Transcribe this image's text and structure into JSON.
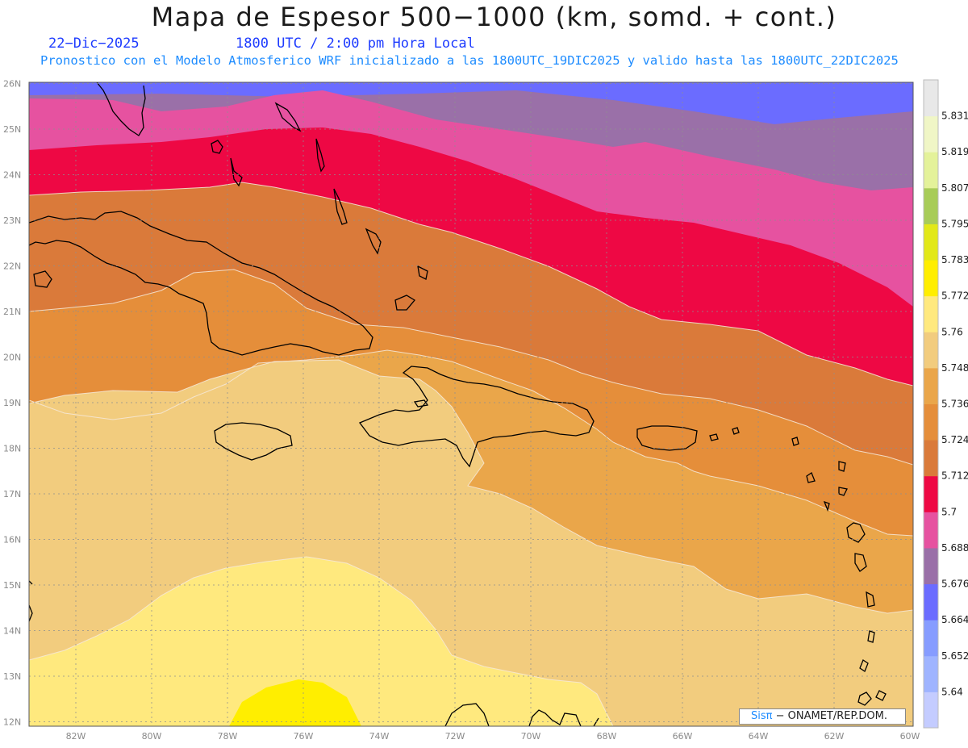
{
  "title": "Mapa de Espesor 500−1000 (km, somd. + cont.)",
  "date": "22−Dic−2025",
  "time": "1800 UTC / 2:00 pm Hora Local",
  "subtitle": "Pronostico con el Modelo Atmosferico WRF inicializado a las 1800UTC_19DIC2025 y valido hasta las  1800UTC_22DIC2025",
  "credit": {
    "brand": "Sisπ",
    "text": " − ONAMET/REP.DOM."
  },
  "lat_labels": [
    "26N",
    "25N",
    "24N",
    "23N",
    "22N",
    "21N",
    "20N",
    "19N",
    "18N",
    "17N",
    "16N",
    "15N",
    "14N",
    "13N",
    "12N"
  ],
  "lon_labels": [
    "82W",
    "80W",
    "78W",
    "76W",
    "74W",
    "72W",
    "70W",
    "68W",
    "66W",
    "64W",
    "62W",
    "60W"
  ],
  "colorbar": {
    "levels": [
      "5.64",
      "5.652",
      "5.664",
      "5.676",
      "5.688",
      "5.7",
      "5.712",
      "5.724",
      "5.736",
      "5.748",
      "5.76",
      "5.772",
      "5.783",
      "5.795",
      "5.807",
      "5.819",
      "5.831"
    ],
    "colors": [
      "#c4ccff",
      "#9fb4ff",
      "#869cff",
      "#6b6cff",
      "#9a70a8",
      "#e652a0",
      "#ee0844",
      "#da7a3a",
      "#e58e3a",
      "#eaa64a",
      "#f2cc7e",
      "#ffe97e",
      "#ffee00",
      "#e2e818",
      "#a8cc58",
      "#e4f29a",
      "#f0f6c6",
      "#e8e8e8"
    ]
  },
  "map": {
    "region": "Caribe: Cuba, Jamaica, La Espanola, Puerto Rico, Antillas Menores, Bahamas",
    "contour_field": "espesor 500-1000 hPa",
    "bands_north_to_south": [
      "#6b6cff",
      "#9a70a8",
      "#e652a0",
      "#ee0844",
      "#da7a3a",
      "#e58e3a",
      "#eaa64a",
      "#f2cc7e",
      "#ffe97e",
      "#ffee00"
    ],
    "coastline_color": "#000000",
    "gridline_color": "#9a9a9a"
  }
}
